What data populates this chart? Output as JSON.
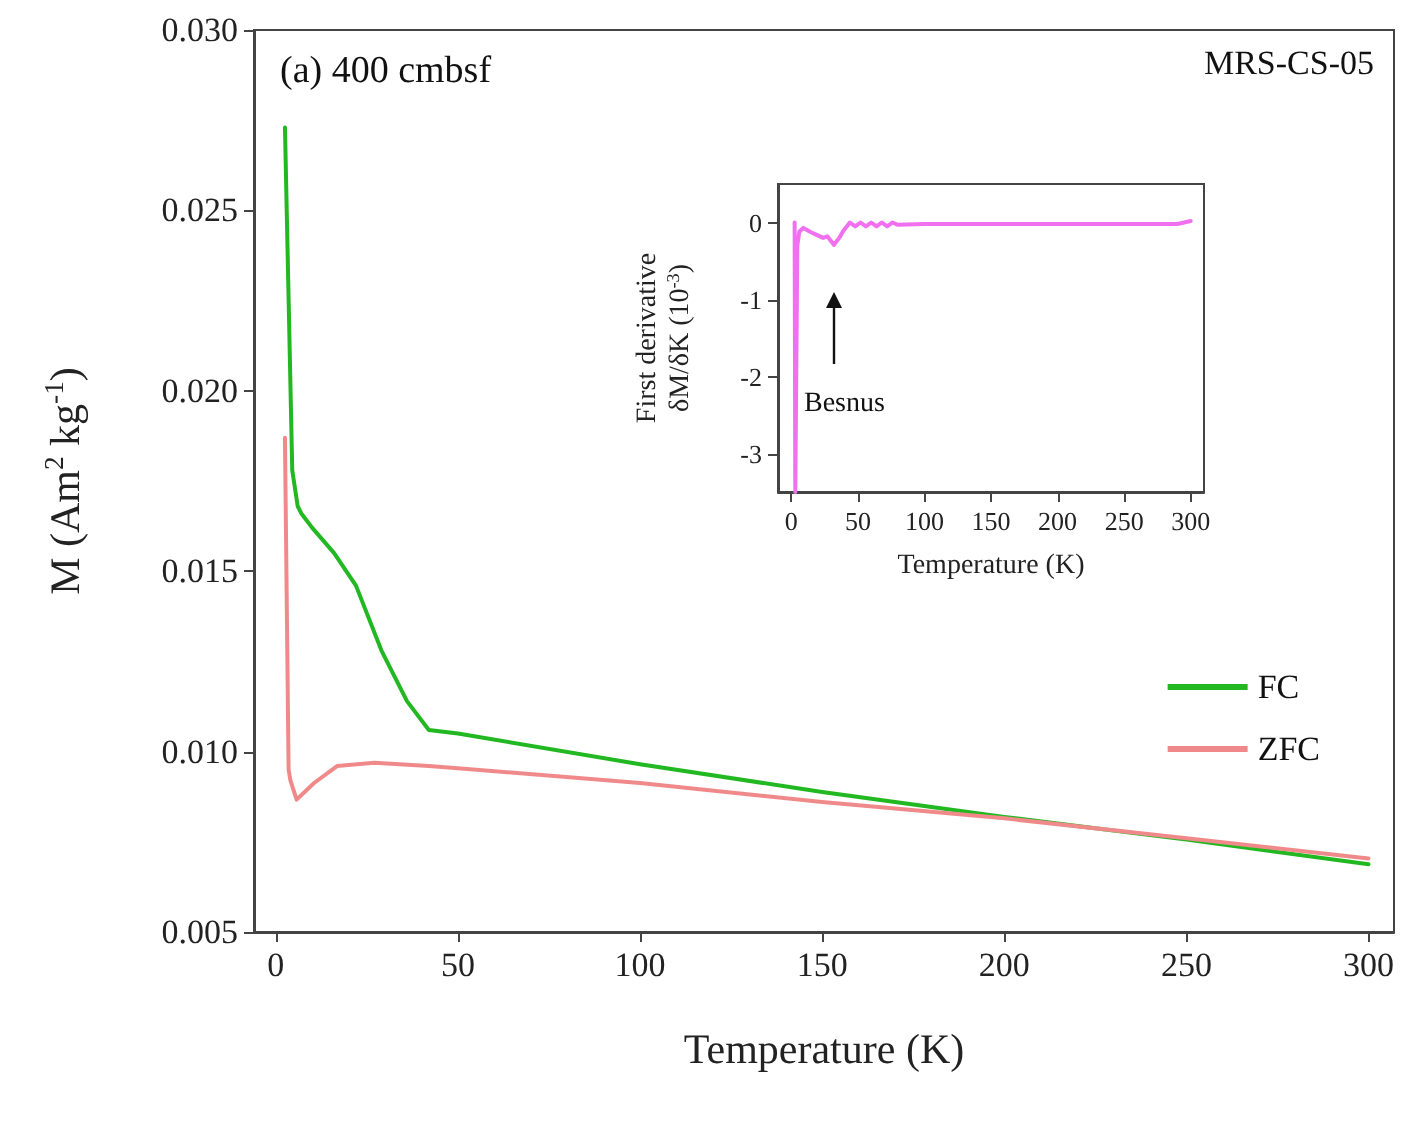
{
  "chart_data": [
    {
      "type": "line",
      "title": "(a) 400 cmbsf",
      "annotations": [
        "MRS-CS-05"
      ],
      "xlabel": "Temperature (K)",
      "ylabel": "M (Am$^{2}$ kg$^{-1}$)",
      "xlim": [
        -6,
        307
      ],
      "ylim": [
        0.005,
        0.03
      ],
      "xticks": [
        0,
        50,
        100,
        150,
        200,
        250,
        300
      ],
      "yticks": [
        0.005,
        {
          "value": 0.01,
          "label": "0.010"
        },
        {
          "value": 0.015,
          "label": "0.015"
        },
        {
          "value": 0.02,
          "label": "0.020"
        },
        {
          "value": 0.025,
          "label": "0.025"
        },
        {
          "value": 0.03,
          "label": "0.030"
        }
      ],
      "grid": false,
      "legend": "right",
      "marker": "none",
      "line_style": "solid",
      "series": [
        {
          "name": "FC",
          "color": "#22b822",
          "x": [
            2.5,
            4.5,
            6,
            7,
            10,
            16,
            22,
            29,
            36,
            42,
            50,
            100,
            150,
            200,
            250,
            300
          ],
          "values": [
            0.0273,
            0.0178,
            0.0168,
            0.0166,
            0.0162,
            0.0155,
            0.0146,
            0.0128,
            0.0114,
            0.0106,
            0.0105,
            0.00965,
            0.00888,
            0.00819,
            0.00756,
            0.00688
          ]
        },
        {
          "name": "ZFC",
          "color": "#f08a8a",
          "x": [
            2.5,
            3.5,
            4,
            5.7,
            10.5,
            16.8,
            27,
            42,
            50,
            100,
            150,
            200,
            250,
            300
          ],
          "values": [
            0.0187,
            0.0095,
            0.0092,
            0.00867,
            0.00913,
            0.0096,
            0.00969,
            0.0096,
            0.00954,
            0.00913,
            0.0086,
            0.00815,
            0.0076,
            0.00704
          ]
        }
      ]
    },
    {
      "type": "line",
      "xlabel": "Temperature (K)",
      "ylabel": "First derivative\nδM/δK (10$^{-3}$)",
      "xlim": [
        -10,
        310
      ],
      "ylim": [
        -3.5,
        0.5
      ],
      "xticks": [
        0,
        50,
        100,
        150,
        200,
        250,
        300
      ],
      "yticks": [
        -3,
        -2,
        -1,
        0
      ],
      "grid": false,
      "legend": false,
      "marker": "none",
      "line_style": "solid",
      "annotations": [
        "Besnus"
      ],
      "series": [
        {
          "color": "#f070f0",
          "x": [
            2.5,
            3,
            4.5,
            6,
            9,
            14,
            19,
            24,
            27,
            32,
            36,
            39,
            44,
            48,
            52,
            56,
            60,
            64,
            68,
            72,
            76,
            80,
            100,
            150,
            200,
            250,
            290,
            300
          ],
          "values": [
            0,
            -3.5,
            -0.3,
            -0.12,
            -0.07,
            -0.12,
            -0.16,
            -0.2,
            -0.18,
            -0.29,
            -0.2,
            -0.11,
            0,
            -0.05,
            0,
            -0.05,
            0,
            -0.05,
            0,
            -0.05,
            0,
            -0.03,
            -0.02,
            -0.02,
            -0.02,
            -0.02,
            -0.02,
            0.02
          ]
        }
      ]
    }
  ]
}
